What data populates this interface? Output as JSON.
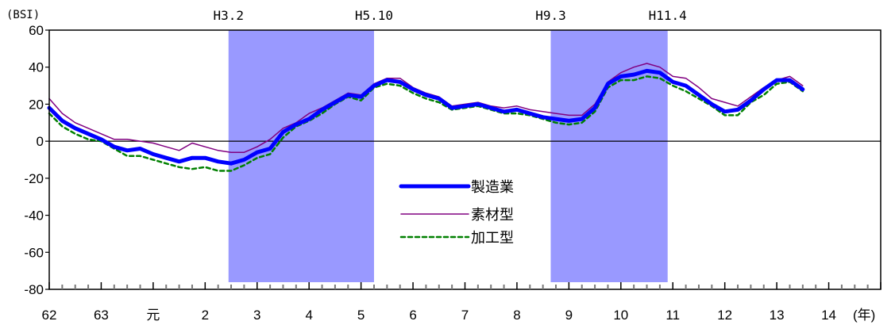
{
  "chart_data": {
    "type": "line",
    "title": "",
    "ylabel": "(BSI)",
    "xunit": "(年)",
    "ylim": [
      -80,
      60
    ],
    "yticks": [
      60,
      40,
      20,
      0,
      -20,
      -40,
      -60,
      -80
    ],
    "xlim": [
      0,
      16
    ],
    "x_tick_labels": [
      "62",
      "63",
      "元",
      "2",
      "3",
      "4",
      "5",
      "6",
      "7",
      "8",
      "9",
      "10",
      "11",
      "12",
      "13",
      "14"
    ],
    "shaded_periods": [
      {
        "start": 3.45,
        "end": 6.25,
        "label_start": "H3.2",
        "label_end": "H5.10"
      },
      {
        "start": 9.65,
        "end": 11.9,
        "label_start": "H9.3",
        "label_end": "H11.4"
      }
    ],
    "colors": {
      "shade": "#9999ff",
      "manufacturing": "#0000ff",
      "materials": "#800080",
      "processing": "#008000"
    },
    "legend": {
      "position": "center"
    },
    "series": [
      {
        "name": "製造業",
        "style": "thick-solid",
        "x": [
          0,
          0.25,
          0.5,
          0.75,
          1,
          1.25,
          1.5,
          1.75,
          2,
          2.25,
          2.5,
          2.75,
          3,
          3.25,
          3.5,
          3.75,
          4,
          4.25,
          4.5,
          4.75,
          5,
          5.25,
          5.5,
          5.75,
          6,
          6.25,
          6.5,
          6.75,
          7,
          7.25,
          7.5,
          7.75,
          8,
          8.25,
          8.5,
          8.75,
          9,
          9.25,
          9.5,
          9.75,
          10,
          10.25,
          10.5,
          10.75,
          11,
          11.25,
          11.5,
          11.75,
          12,
          12.25,
          12.5,
          12.75,
          13,
          13.25,
          13.5,
          13.75,
          14,
          14.25,
          14.5,
          14.75,
          15
        ],
        "values": [
          18,
          11,
          7,
          4,
          1,
          -3,
          -5,
          -4,
          -7,
          -9,
          -11,
          -9,
          -9,
          -11,
          -12,
          -10,
          -6,
          -4,
          5,
          9,
          12,
          17,
          21,
          25,
          24,
          30,
          33,
          32,
          28,
          25,
          23,
          18,
          19,
          20,
          18,
          16,
          17,
          15,
          13,
          12,
          11,
          12,
          18,
          31,
          35,
          36,
          38,
          37,
          32,
          30,
          25,
          20,
          16,
          17,
          22,
          28,
          33,
          33,
          28,
          28,
          28
        ],
        "visible_count": 59
      },
      {
        "name": "素材型",
        "style": "thin-solid",
        "x": [
          0,
          0.25,
          0.5,
          0.75,
          1,
          1.25,
          1.5,
          1.75,
          2,
          2.25,
          2.5,
          2.75,
          3,
          3.25,
          3.5,
          3.75,
          4,
          4.25,
          4.5,
          4.75,
          5,
          5.25,
          5.5,
          5.75,
          6,
          6.25,
          6.5,
          6.75,
          7,
          7.25,
          7.5,
          7.75,
          8,
          8.25,
          8.5,
          8.75,
          9,
          9.25,
          9.5,
          9.75,
          10,
          10.25,
          10.5,
          10.75,
          11,
          11.25,
          11.5,
          11.75,
          12,
          12.25,
          12.5,
          12.75,
          13,
          13.25,
          13.5,
          13.75,
          14,
          14.25,
          14.5,
          14.75
        ],
        "values": [
          23,
          15,
          10,
          7,
          4,
          1,
          1,
          0,
          -1,
          -3,
          -5,
          -1,
          -3,
          -5,
          -6,
          -6,
          -3,
          1,
          7,
          10,
          15,
          18,
          22,
          26,
          25,
          31,
          34,
          34,
          29,
          26,
          24,
          19,
          20,
          21,
          19,
          18,
          19,
          17,
          16,
          15,
          14,
          14,
          20,
          32,
          37,
          40,
          42,
          40,
          35,
          34,
          29,
          23,
          21,
          19,
          24,
          29,
          33,
          35,
          30,
          30
        ],
        "visible_count": 59
      },
      {
        "name": "加工型",
        "style": "dashed",
        "x": [
          0,
          0.25,
          0.5,
          0.75,
          1,
          1.25,
          1.5,
          1.75,
          2,
          2.25,
          2.5,
          2.75,
          3,
          3.25,
          3.5,
          3.75,
          4,
          4.25,
          4.5,
          4.75,
          5,
          5.25,
          5.5,
          5.75,
          6,
          6.25,
          6.5,
          6.75,
          7,
          7.25,
          7.5,
          7.75,
          8,
          8.25,
          8.5,
          8.75,
          9,
          9.25,
          9.5,
          9.75,
          10,
          10.25,
          10.5,
          10.75,
          11,
          11.25,
          11.5,
          11.75,
          12,
          12.25,
          12.5,
          12.75,
          13,
          13.25,
          13.5,
          13.75,
          14,
          14.25,
          14.5,
          14.75
        ],
        "values": [
          15,
          8,
          4,
          1,
          0,
          -4,
          -8,
          -8,
          -10,
          -12,
          -14,
          -15,
          -14,
          -16,
          -16,
          -13,
          -9,
          -7,
          2,
          8,
          11,
          15,
          20,
          24,
          22,
          29,
          31,
          30,
          26,
          23,
          21,
          17,
          18,
          19,
          17,
          15,
          15,
          14,
          12,
          10,
          9,
          10,
          16,
          29,
          33,
          33,
          35,
          34,
          30,
          27,
          23,
          19,
          14,
          14,
          21,
          25,
          31,
          32,
          27,
          27
        ],
        "visible_count": 59
      }
    ]
  }
}
